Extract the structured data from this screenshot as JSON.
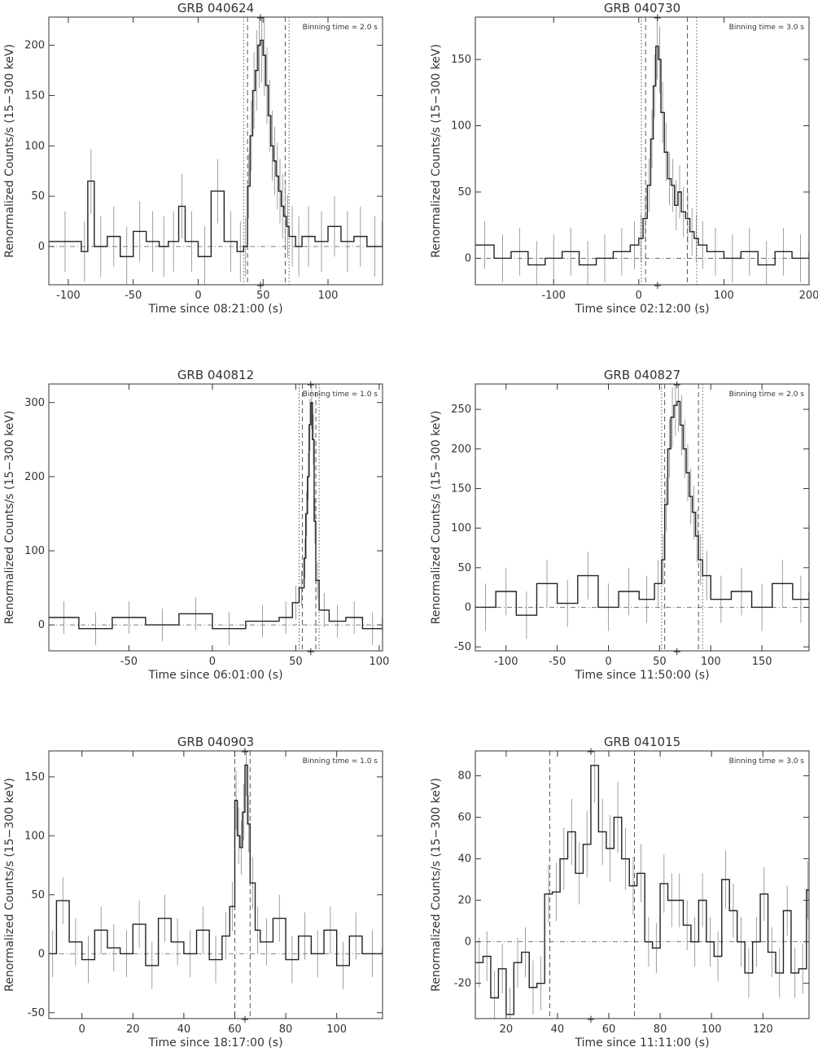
{
  "chart_data": [
    {
      "type": "line",
      "title": "GRB 040624",
      "xlabel": "Time since 08:21:00 (s)",
      "ylabel": "Renormalized Counts/s (15−300 keV)",
      "binning": "Binning time = 2.0 s",
      "xlim": [
        -115,
        142
      ],
      "ylim": [
        -38,
        228
      ],
      "xticks": [
        -100,
        -50,
        0,
        50,
        100
      ],
      "yticks": [
        0,
        50,
        100,
        150,
        200
      ],
      "dashed_lines": [
        38,
        67
      ],
      "dotted_lines": [
        35,
        70
      ],
      "peak_marker": 48,
      "series": [
        {
          "x": [
            -115,
            -90,
            -85,
            -80,
            -70,
            -60,
            -50,
            -40,
            -30,
            -23,
            -15,
            -10,
            0,
            10,
            20,
            30,
            35,
            38,
            40,
            42,
            44,
            46,
            48,
            50,
            52,
            54,
            56,
            58,
            60,
            62,
            64,
            66,
            68,
            70,
            75,
            80,
            90,
            100,
            110,
            120,
            130,
            142
          ],
          "y": [
            5,
            -5,
            65,
            0,
            10,
            -10,
            15,
            5,
            0,
            5,
            40,
            5,
            -10,
            55,
            5,
            -5,
            0,
            60,
            110,
            155,
            175,
            200,
            205,
            190,
            160,
            130,
            100,
            85,
            70,
            55,
            40,
            30,
            20,
            10,
            0,
            10,
            5,
            20,
            5,
            10,
            0,
            25
          ],
          "err": [
            30,
            30,
            32,
            30,
            30,
            30,
            30,
            30,
            30,
            30,
            32,
            30,
            30,
            32,
            30,
            30,
            30,
            32,
            35,
            38,
            40,
            42,
            42,
            40,
            38,
            36,
            35,
            34,
            33,
            32,
            32,
            31,
            31,
            30,
            30,
            30,
            30,
            30,
            30,
            30,
            30,
            30
          ]
        }
      ]
    },
    {
      "type": "line",
      "title": "GRB 040730",
      "xlabel": "Time since 02:12:00 (s)",
      "ylabel": "Renormalized Counts/s (15−300 keV)",
      "binning": "Binning time = 3.0 s",
      "xlim": [
        -192,
        200
      ],
      "ylim": [
        -20,
        182
      ],
      "xticks": [
        -100,
        0,
        100,
        200
      ],
      "yticks": [
        0,
        50,
        100,
        150
      ],
      "dashed_lines": [
        8,
        57
      ],
      "dotted_lines": [
        3,
        68
      ],
      "peak_marker": 22,
      "series": [
        {
          "x": [
            -192,
            -170,
            -150,
            -130,
            -110,
            -90,
            -70,
            -50,
            -30,
            -10,
            0,
            5,
            10,
            14,
            17,
            20,
            23,
            26,
            30,
            34,
            38,
            42,
            46,
            50,
            55,
            60,
            65,
            70,
            80,
            100,
            120,
            140,
            160,
            180,
            200
          ],
          "y": [
            10,
            0,
            5,
            -5,
            0,
            5,
            -5,
            0,
            5,
            10,
            15,
            30,
            55,
            90,
            130,
            160,
            150,
            110,
            80,
            60,
            55,
            40,
            50,
            35,
            30,
            20,
            15,
            10,
            5,
            0,
            5,
            -5,
            5,
            0,
            5
          ],
          "err": [
            18,
            18,
            18,
            18,
            18,
            18,
            18,
            18,
            18,
            18,
            18,
            18,
            20,
            22,
            24,
            25,
            25,
            23,
            22,
            20,
            20,
            19,
            20,
            19,
            19,
            18,
            18,
            18,
            18,
            18,
            18,
            18,
            18,
            18,
            18
          ]
        }
      ]
    },
    {
      "type": "line",
      "title": "GRB 040812",
      "xlabel": "Time since 06:01:00 (s)",
      "ylabel": "Renormalized Counts/s (15−300 keV)",
      "binning": "Binning time = 1.0 s",
      "xlim": [
        -98,
        102
      ],
      "ylim": [
        -35,
        325
      ],
      "xticks": [
        -50,
        0,
        50,
        100
      ],
      "yticks": [
        0,
        100,
        200,
        300
      ],
      "dashed_lines": [
        54,
        62
      ],
      "dotted_lines": [
        52,
        64
      ],
      "peak_marker": 59,
      "series": [
        {
          "x": [
            -98,
            -80,
            -60,
            -40,
            -20,
            0,
            20,
            40,
            48,
            52,
            55,
            56,
            57,
            58,
            59,
            60,
            61,
            62,
            64,
            70,
            80,
            90,
            102
          ],
          "y": [
            10,
            -5,
            10,
            0,
            15,
            -5,
            5,
            10,
            30,
            50,
            90,
            150,
            200,
            270,
            300,
            250,
            140,
            60,
            20,
            5,
            10,
            -5,
            10
          ],
          "err": [
            22,
            22,
            22,
            22,
            22,
            22,
            22,
            22,
            23,
            24,
            27,
            30,
            32,
            35,
            36,
            34,
            30,
            25,
            23,
            22,
            22,
            22,
            22
          ]
        }
      ]
    },
    {
      "type": "line",
      "title": "GRB 040827",
      "xlabel": "Time since 11:50:00 (s)",
      "ylabel": "Renormalized Counts/s (15−300 keV)",
      "binning": "Binning time = 2.0 s",
      "xlim": [
        -130,
        196
      ],
      "ylim": [
        -55,
        282
      ],
      "xticks": [
        -100,
        -50,
        0,
        50,
        100,
        150
      ],
      "yticks": [
        -50,
        0,
        50,
        100,
        150,
        200,
        250
      ],
      "dashed_lines": [
        55,
        88
      ],
      "dotted_lines": [
        52,
        92
      ],
      "peak_marker": 67,
      "series": [
        {
          "x": [
            -130,
            -110,
            -90,
            -70,
            -50,
            -30,
            -10,
            10,
            30,
            45,
            52,
            55,
            58,
            61,
            64,
            67,
            70,
            73,
            76,
            79,
            82,
            85,
            88,
            92,
            100,
            120,
            140,
            160,
            180,
            196
          ],
          "y": [
            0,
            20,
            -10,
            30,
            5,
            40,
            0,
            20,
            10,
            30,
            60,
            130,
            200,
            240,
            255,
            260,
            230,
            200,
            170,
            140,
            120,
            90,
            60,
            40,
            10,
            20,
            0,
            30,
            10,
            20
          ],
          "err": [
            30,
            30,
            30,
            30,
            30,
            30,
            30,
            30,
            30,
            30,
            32,
            34,
            37,
            38,
            39,
            39,
            38,
            37,
            36,
            35,
            34,
            33,
            32,
            31,
            30,
            30,
            30,
            30,
            30,
            30
          ]
        }
      ]
    },
    {
      "type": "line",
      "title": "GRB 040903",
      "xlabel": "Time since 18:17:00 (s)",
      "ylabel": "Renormalized Counts/s (15−300 keV)",
      "binning": "Binning time = 1.0 s",
      "xlim": [
        -13,
        118
      ],
      "ylim": [
        -55,
        172
      ],
      "xticks": [
        0,
        20,
        40,
        60,
        80,
        100
      ],
      "yticks": [
        -50,
        0,
        50,
        100,
        150
      ],
      "dashed_lines": [
        60,
        66
      ],
      "dotted_lines": [],
      "peak_marker": 64,
      "series": [
        {
          "x": [
            -13,
            -10,
            -5,
            0,
            5,
            10,
            15,
            20,
            25,
            30,
            35,
            40,
            45,
            50,
            55,
            58,
            60,
            61,
            62,
            63,
            64,
            65,
            66,
            68,
            70,
            75,
            80,
            85,
            90,
            95,
            100,
            105,
            110,
            118
          ],
          "y": [
            0,
            45,
            10,
            -5,
            20,
            5,
            0,
            25,
            -10,
            30,
            10,
            0,
            20,
            -5,
            15,
            40,
            130,
            100,
            90,
            120,
            160,
            110,
            60,
            20,
            10,
            30,
            -5,
            15,
            0,
            20,
            -10,
            15,
            0,
            5
          ],
          "err": [
            20,
            20,
            20,
            20,
            20,
            20,
            20,
            20,
            20,
            20,
            20,
            20,
            20,
            20,
            20,
            21,
            25,
            24,
            23,
            24,
            26,
            24,
            22,
            20,
            20,
            20,
            20,
            20,
            20,
            20,
            20,
            20,
            20,
            20
          ]
        }
      ]
    },
    {
      "type": "line",
      "title": "GRB 041015",
      "xlabel": "Time since 11:11:00 (s)",
      "ylabel": "Renormalized Counts/s (15−300 keV)",
      "binning": "Binning time = 3.0 s",
      "xlim": [
        8,
        138
      ],
      "ylim": [
        -37,
        92
      ],
      "xticks": [
        20,
        40,
        60,
        80,
        100,
        120
      ],
      "yticks": [
        -20,
        0,
        20,
        40,
        60,
        80
      ],
      "dashed_lines": [
        37,
        70
      ],
      "dotted_lines": [],
      "peak_marker": 53,
      "series": [
        {
          "x": [
            8,
            11,
            14,
            17,
            20,
            23,
            26,
            29,
            32,
            35,
            38,
            41,
            44,
            47,
            50,
            53,
            56,
            59,
            62,
            65,
            68,
            71,
            74,
            77,
            80,
            83,
            86,
            89,
            92,
            95,
            98,
            101,
            104,
            107,
            110,
            113,
            116,
            119,
            122,
            125,
            128,
            131,
            134,
            137
          ],
          "y": [
            -10,
            -7,
            -27,
            -13,
            -35,
            -10,
            -5,
            -22,
            -20,
            23,
            24,
            40,
            53,
            33,
            47,
            85,
            53,
            45,
            60,
            40,
            27,
            33,
            0,
            -3,
            28,
            20,
            20,
            8,
            0,
            20,
            0,
            -7,
            30,
            15,
            0,
            -15,
            0,
            23,
            -5,
            -15,
            15,
            -15,
            -13,
            25
          ],
          "err": [
            12,
            12,
            13,
            12,
            13,
            12,
            12,
            13,
            13,
            14,
            14,
            15,
            16,
            15,
            16,
            18,
            16,
            16,
            17,
            15,
            14,
            14,
            12,
            12,
            14,
            13,
            13,
            12,
            12,
            13,
            12,
            12,
            14,
            13,
            12,
            12,
            12,
            13,
            12,
            12,
            12,
            12,
            12,
            14
          ]
        }
      ]
    }
  ]
}
